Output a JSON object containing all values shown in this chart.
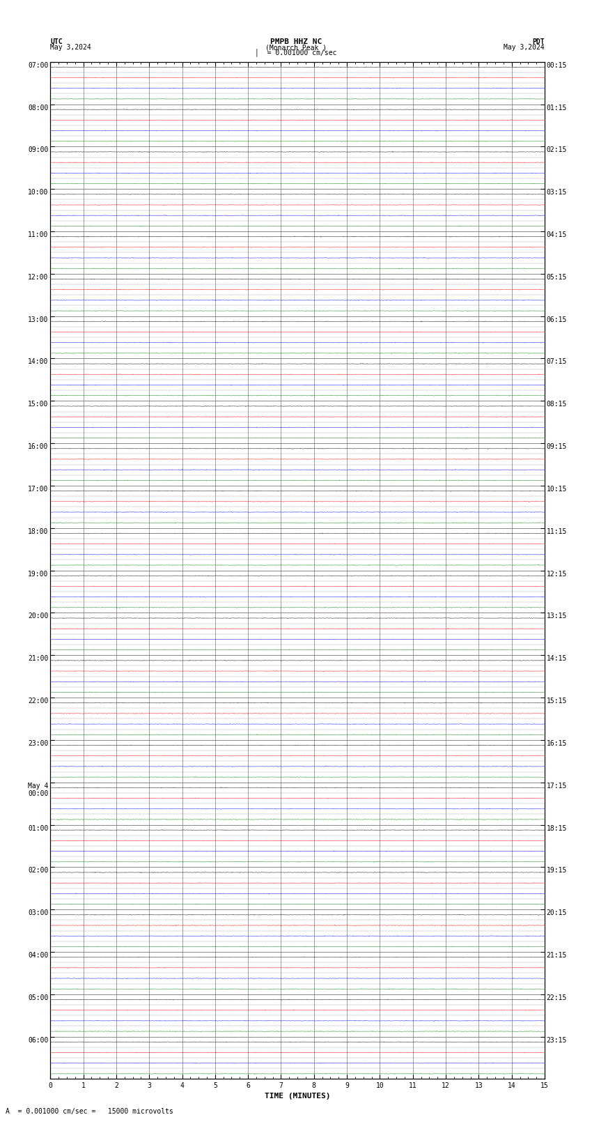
{
  "title_line1": "PMPB HHZ NC",
  "title_line2": "(Monarch Peak )",
  "scale_text": "= 0.001000 cm/sec",
  "footer_text": "A  = 0.001000 cm/sec =   15000 microvolts",
  "left_header": "UTC",
  "left_date": "May 3,2024",
  "right_header": "PDT",
  "right_date": "May 3,2024",
  "xlabel": "TIME (MINUTES)",
  "xmin": 0,
  "xmax": 15,
  "background_color": "#ffffff",
  "trace_colors": [
    "black",
    "red",
    "blue",
    "green"
  ],
  "utc_labels": [
    "07:00",
    "08:00",
    "09:00",
    "10:00",
    "11:00",
    "12:00",
    "13:00",
    "14:00",
    "15:00",
    "16:00",
    "17:00",
    "18:00",
    "19:00",
    "20:00",
    "21:00",
    "22:00",
    "23:00",
    "May 4\n00:00",
    "01:00",
    "02:00",
    "03:00",
    "04:00",
    "05:00",
    "06:00"
  ],
  "pdt_labels": [
    "00:15",
    "01:15",
    "02:15",
    "03:15",
    "04:15",
    "05:15",
    "06:15",
    "07:15",
    "08:15",
    "09:15",
    "10:15",
    "11:15",
    "12:15",
    "13:15",
    "14:15",
    "15:15",
    "16:15",
    "17:15",
    "18:15",
    "19:15",
    "20:15",
    "21:15",
    "22:15",
    "23:15"
  ],
  "num_hours": 24,
  "traces_per_hour": 4,
  "trace_amplitude": 0.018,
  "noise_amplitude": 0.012,
  "grid_color": "#777777",
  "tick_major_x": [
    0,
    1,
    2,
    3,
    4,
    5,
    6,
    7,
    8,
    9,
    10,
    11,
    12,
    13,
    14,
    15
  ],
  "figsize": [
    8.5,
    16.13
  ],
  "dpi": 100,
  "font_size_title": 8,
  "font_size_labels": 7,
  "font_size_ticks": 7,
  "font_size_footer": 7
}
